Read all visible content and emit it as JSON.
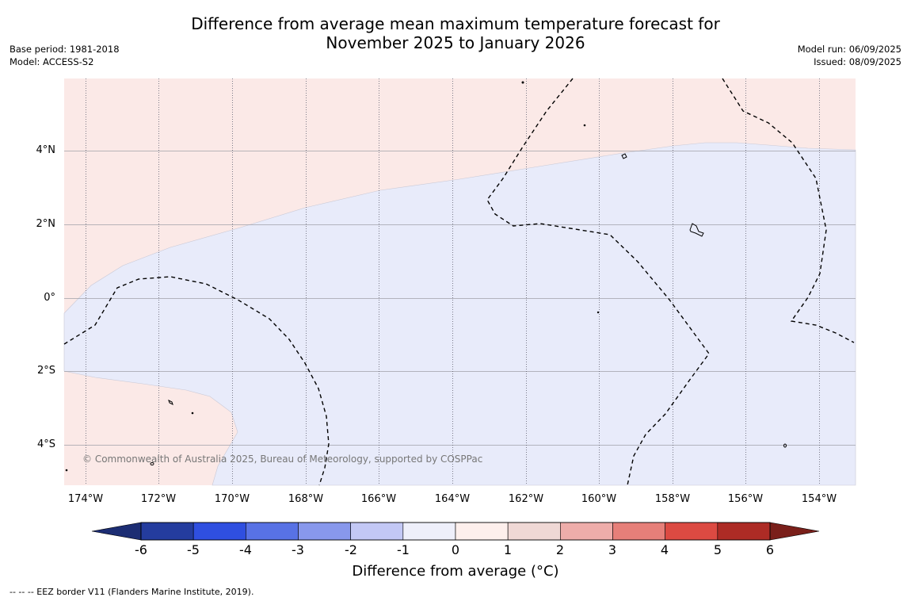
{
  "title_line1": "Difference from average mean maximum temperature forecast for",
  "title_line2": "November 2025 to January 2026",
  "meta_left": {
    "base_period": "Base period: 1981-2018",
    "model": "Model: ACCESS-S2"
  },
  "meta_right": {
    "model_run": "Model run: 06/09/2025",
    "issued": "Issued: 08/09/2025"
  },
  "map": {
    "lat_labels": [
      "4°N",
      "2°N",
      "0°",
      "2°S",
      "4°S"
    ],
    "lon_labels": [
      "174°W",
      "172°W",
      "170°W",
      "168°W",
      "166°W",
      "164°W",
      "162°W",
      "160°W",
      "158°W",
      "156°W",
      "154°W"
    ],
    "lat_values": [
      4,
      2,
      0,
      -2,
      -4
    ],
    "lon_values": [
      -174,
      -172,
      -170,
      -168,
      -166,
      -164,
      -162,
      -160,
      -158,
      -156,
      -154
    ],
    "lat_range": [
      -5.2,
      5.9
    ],
    "lon_range": [
      -174.6,
      -153.1
    ],
    "copyright": "© Commonwealth of Australia 2025, Bureau of Meteorology, supported by COSPPac",
    "warm_color": "#fbe9e7",
    "cool_color": "#e8ebfa"
  },
  "colorbar": {
    "ticks": [
      "-6",
      "-5",
      "-4",
      "-3",
      "-2",
      "-1",
      "0",
      "1",
      "2",
      "3",
      "4",
      "5",
      "6"
    ],
    "colors": [
      "#243c9e",
      "#2f4fe0",
      "#5872e5",
      "#8898ec",
      "#c3c8f5",
      "#eeeffa",
      "#fdefec",
      "#efd8d5",
      "#eeadaa",
      "#e67f79",
      "#dc4a42",
      "#ad2b25"
    ],
    "under_color": "#1c2d73",
    "over_color": "#7a1f1a",
    "label": "Difference from average (°C)"
  },
  "footnote": "--  --  -- EEZ border V11 (Flanders Marine Institute, 2019)."
}
